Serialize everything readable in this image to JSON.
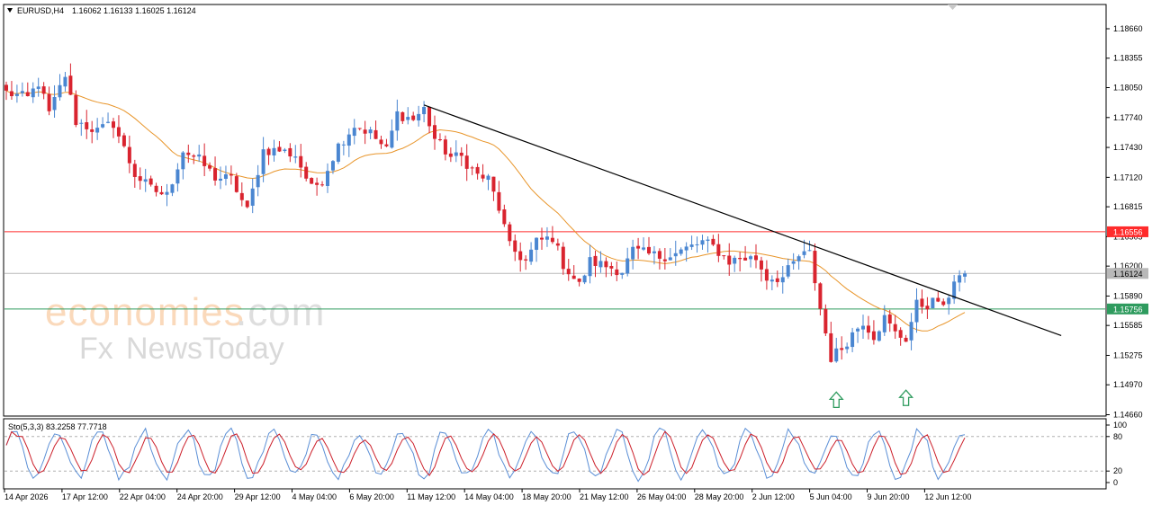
{
  "header": {
    "symbol": "EURUSD,H4",
    "ohlc": "1.16062 1.16133 1.16025 1.16124"
  },
  "watermark": {
    "brand_main": "economies",
    "brand_suffix": ".com",
    "sub_fx": "Fx",
    "sub_rest": "NewsToday"
  },
  "colors": {
    "bull": "#4a86d1",
    "bear": "#d9242f",
    "ma": "#e8952a",
    "resistance": "#ff2b2b",
    "support": "#2e9b5e",
    "current": "#b8b8b8",
    "trendline": "#000000",
    "stoch_main": "#5b8fd6",
    "stoch_signal": "#cc1f2a",
    "arrow": "#2e9b5e"
  },
  "chart_data": [
    {
      "type": "candlestick",
      "symbol": "EURUSD",
      "timeframe": "H4",
      "y_ticks": [
        "1.18660",
        "1.18355",
        "1.18050",
        "1.17740",
        "1.17430",
        "1.17120",
        "1.16815",
        "1.16505",
        "1.16200",
        "1.15890",
        "1.15585",
        "1.15275",
        "1.14970",
        "1.14660"
      ],
      "ylim": [
        1.1462,
        1.1898
      ],
      "x_ticks": [
        "14 Apr 2026",
        "17 Apr 12:00",
        "22 Apr 04:00",
        "24 Apr 20:00",
        "29 Apr 12:00",
        "4 May 04:00",
        "6 May 20:00",
        "11 May 12:00",
        "14 May 04:00",
        "18 May 20:00",
        "21 May 12:00",
        "26 May 04:00",
        "28 May 20:00",
        "2 Jun 12:00",
        "5 Jun 04:00",
        "9 Jun 20:00",
        "12 Jun 12:00"
      ],
      "bars": 180,
      "levels": [
        {
          "label": "1.16556",
          "value": 1.16556,
          "role": "resistance"
        },
        {
          "label": "1.16124",
          "value": 1.16124,
          "role": "current"
        },
        {
          "label": "1.15756",
          "value": 1.15756,
          "role": "support"
        }
      ],
      "trendline": {
        "from": {
          "bar": 78,
          "value": 1.1787
        },
        "to": {
          "bar": 197,
          "value": 1.1548
        }
      },
      "support_arrows": [
        {
          "bar": 155,
          "value": 1.1495
        },
        {
          "bar": 168,
          "value": 1.1497
        }
      ],
      "price_path": [
        [
          0,
          1.18
        ],
        [
          4,
          1.1794
        ],
        [
          6,
          1.181
        ],
        [
          8,
          1.1778
        ],
        [
          11,
          1.1818
        ],
        [
          13,
          1.177
        ],
        [
          17,
          1.176
        ],
        [
          20,
          1.1768
        ],
        [
          24,
          1.1715
        ],
        [
          27,
          1.17
        ],
        [
          30,
          1.1693
        ],
        [
          33,
          1.174
        ],
        [
          36,
          1.173
        ],
        [
          39,
          1.1712
        ],
        [
          42,
          1.171
        ],
        [
          45,
          1.1677
        ],
        [
          48,
          1.174
        ],
        [
          51,
          1.174
        ],
        [
          54,
          1.1735
        ],
        [
          57,
          1.17
        ],
        [
          59,
          1.171
        ],
        [
          62,
          1.1745
        ],
        [
          65,
          1.1766
        ],
        [
          68,
          1.1758
        ],
        [
          71,
          1.174
        ],
        [
          73,
          1.1778
        ],
        [
          76,
          1.1772
        ],
        [
          78,
          1.1783
        ],
        [
          80,
          1.1752
        ],
        [
          83,
          1.1733
        ],
        [
          85,
          1.1733
        ],
        [
          88,
          1.1714
        ],
        [
          90,
          1.171
        ],
        [
          92,
          1.168
        ],
        [
          94,
          1.164
        ],
        [
          97,
          1.1625
        ],
        [
          99,
          1.1645
        ],
        [
          102,
          1.165
        ],
        [
          104,
          1.1622
        ],
        [
          107,
          1.16
        ],
        [
          109,
          1.1625
        ],
        [
          112,
          1.162
        ],
        [
          115,
          1.1615
        ],
        [
          117,
          1.1636
        ],
        [
          120,
          1.1632
        ],
        [
          122,
          1.163
        ],
        [
          125,
          1.1633
        ],
        [
          127,
          1.1638
        ],
        [
          130,
          1.1645
        ],
        [
          132,
          1.164
        ],
        [
          135,
          1.1625
        ],
        [
          137,
          1.1628
        ],
        [
          140,
          1.1628
        ],
        [
          142,
          1.1608
        ],
        [
          145,
          1.1608
        ],
        [
          148,
          1.163
        ],
        [
          150,
          1.1633
        ],
        [
          152,
          1.1576
        ],
        [
          154,
          1.1525
        ],
        [
          156,
          1.1535
        ],
        [
          158,
          1.155
        ],
        [
          160,
          1.1563
        ],
        [
          162,
          1.1548
        ],
        [
          164,
          1.1566
        ],
        [
          166,
          1.155
        ],
        [
          168,
          1.1545
        ],
        [
          170,
          1.158
        ],
        [
          172,
          1.158
        ],
        [
          174,
          1.1585
        ],
        [
          175,
          1.1574
        ],
        [
          177,
          1.1607
        ],
        [
          179,
          1.1612
        ]
      ]
    },
    {
      "type": "line",
      "indicator": "Stochastic",
      "title": "Sto(5,3,3) 83.2258 77.7718",
      "y_ticks": [
        "100",
        "80",
        "20",
        "0"
      ],
      "ylim": [
        0,
        100
      ],
      "series": [
        {
          "name": "main",
          "last": 83.2258
        },
        {
          "name": "signal",
          "last": 77.7718
        }
      ]
    }
  ]
}
